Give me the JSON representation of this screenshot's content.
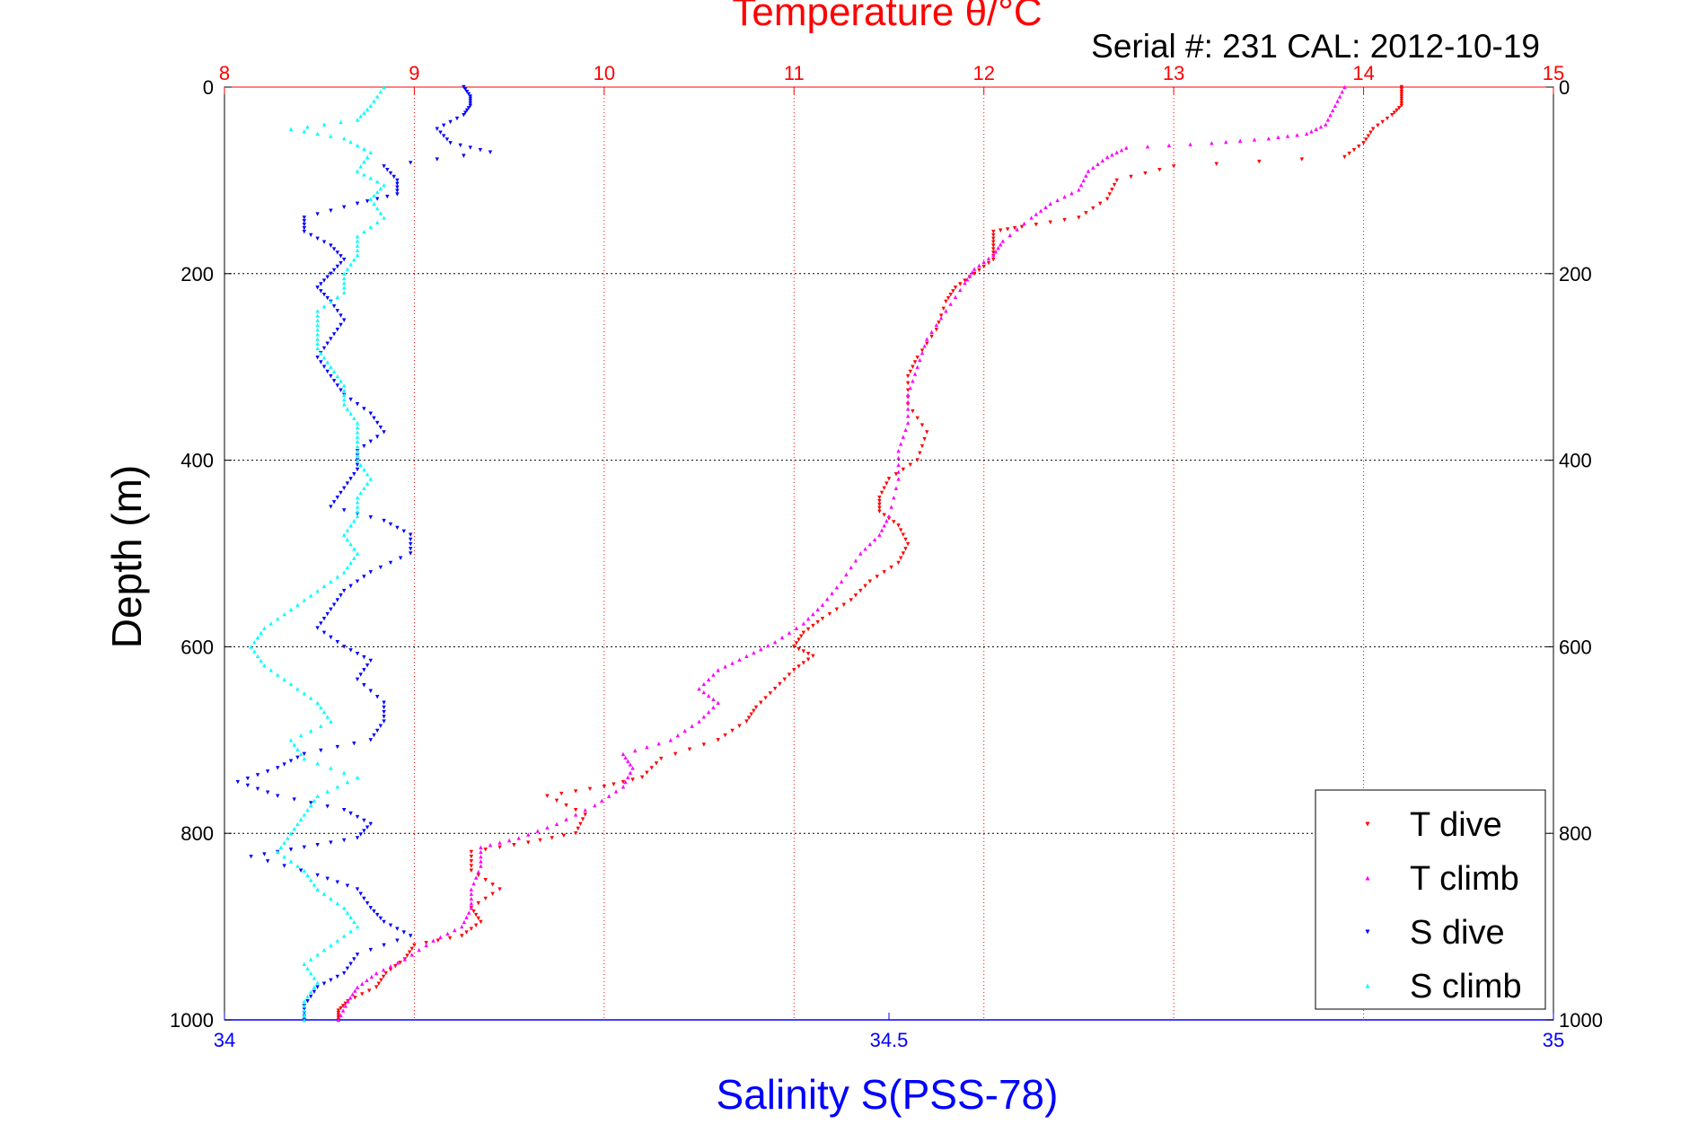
{
  "chart_data": {
    "type": "scatter",
    "title": "Temperature θ/°C",
    "subtitle": "Serial #: 231  CAL: 2012-10-19",
    "ylabel": "Depth (m)",
    "xlabel_bottom": "Salinity S(PSS-78)",
    "ylim": [
      0,
      1000
    ],
    "y_reversed": true,
    "y_ticks": [
      0,
      200,
      400,
      600,
      800,
      1000
    ],
    "x_top": {
      "label": "Temperature θ/°C",
      "lim": [
        8,
        15
      ],
      "ticks": [
        8,
        9,
        10,
        11,
        12,
        13,
        14,
        15
      ],
      "color": "#ff0000"
    },
    "x_bottom": {
      "label": "Salinity S(PSS-78)",
      "lim": [
        34,
        35
      ],
      "ticks": [
        34,
        34.5,
        35
      ],
      "color": "#0000ff"
    },
    "grid": true,
    "legend_position": "bottom-right",
    "series": [
      {
        "name": "T dive",
        "axis": "top",
        "color": "#ff0000",
        "marker": "triangle-down",
        "points": [
          [
            14.2,
            0
          ],
          [
            14.2,
            10
          ],
          [
            14.2,
            20
          ],
          [
            14.15,
            30
          ],
          [
            14.05,
            45
          ],
          [
            14.0,
            60
          ],
          [
            13.9,
            75
          ],
          [
            13.0,
            85
          ],
          [
            12.7,
            100
          ],
          [
            12.65,
            120
          ],
          [
            12.5,
            140
          ],
          [
            12.2,
            150
          ],
          [
            12.05,
            155
          ],
          [
            12.05,
            170
          ],
          [
            12.05,
            185
          ],
          [
            11.95,
            200
          ],
          [
            11.85,
            215
          ],
          [
            11.8,
            230
          ],
          [
            11.75,
            260
          ],
          [
            11.65,
            290
          ],
          [
            11.6,
            310
          ],
          [
            11.6,
            340
          ],
          [
            11.7,
            370
          ],
          [
            11.65,
            400
          ],
          [
            11.5,
            420
          ],
          [
            11.45,
            440
          ],
          [
            11.45,
            455
          ],
          [
            11.55,
            470
          ],
          [
            11.6,
            490
          ],
          [
            11.55,
            510
          ],
          [
            11.4,
            530
          ],
          [
            11.3,
            550
          ],
          [
            11.15,
            570
          ],
          [
            11.05,
            585
          ],
          [
            11.0,
            600
          ],
          [
            11.1,
            610
          ],
          [
            11.0,
            625
          ],
          [
            10.9,
            645
          ],
          [
            10.8,
            665
          ],
          [
            10.75,
            680
          ],
          [
            10.6,
            700
          ],
          [
            10.3,
            720
          ],
          [
            10.2,
            740
          ],
          [
            10.0,
            750
          ],
          [
            9.7,
            760
          ],
          [
            9.9,
            780
          ],
          [
            9.85,
            800
          ],
          [
            9.6,
            810
          ],
          [
            9.3,
            820
          ],
          [
            9.3,
            840
          ],
          [
            9.45,
            860
          ],
          [
            9.3,
            880
          ],
          [
            9.35,
            895
          ],
          [
            9.25,
            910
          ],
          [
            9.0,
            920
          ],
          [
            8.95,
            935
          ],
          [
            8.85,
            950
          ],
          [
            8.8,
            965
          ],
          [
            8.65,
            980
          ],
          [
            8.6,
            990
          ],
          [
            8.6,
            1000
          ]
        ]
      },
      {
        "name": "T climb",
        "axis": "top",
        "color": "#ff00ff",
        "marker": "triangle-up",
        "points": [
          [
            13.9,
            0
          ],
          [
            13.85,
            20
          ],
          [
            13.8,
            40
          ],
          [
            13.7,
            50
          ],
          [
            13.5,
            55
          ],
          [
            13.2,
            60
          ],
          [
            12.75,
            65
          ],
          [
            12.65,
            75
          ],
          [
            12.55,
            90
          ],
          [
            12.5,
            110
          ],
          [
            12.35,
            125
          ],
          [
            12.25,
            140
          ],
          [
            12.1,
            165
          ],
          [
            12.05,
            180
          ],
          [
            11.95,
            195
          ],
          [
            11.9,
            210
          ],
          [
            11.8,
            240
          ],
          [
            11.7,
            270
          ],
          [
            11.65,
            300
          ],
          [
            11.6,
            330
          ],
          [
            11.6,
            360
          ],
          [
            11.55,
            390
          ],
          [
            11.55,
            420
          ],
          [
            11.5,
            460
          ],
          [
            11.45,
            480
          ],
          [
            11.35,
            500
          ],
          [
            11.25,
            530
          ],
          [
            11.15,
            555
          ],
          [
            11.05,
            575
          ],
          [
            10.9,
            595
          ],
          [
            10.75,
            610
          ],
          [
            10.6,
            625
          ],
          [
            10.5,
            645
          ],
          [
            10.6,
            660
          ],
          [
            10.5,
            680
          ],
          [
            10.35,
            700
          ],
          [
            10.1,
            715
          ],
          [
            10.15,
            730
          ],
          [
            10.1,
            750
          ],
          [
            9.95,
            770
          ],
          [
            9.75,
            790
          ],
          [
            9.55,
            805
          ],
          [
            9.35,
            815
          ],
          [
            9.35,
            835
          ],
          [
            9.3,
            860
          ],
          [
            9.3,
            880
          ],
          [
            9.25,
            900
          ],
          [
            9.1,
            915
          ],
          [
            8.95,
            935
          ],
          [
            8.8,
            950
          ],
          [
            8.7,
            965
          ],
          [
            8.65,
            980
          ],
          [
            8.6,
            1000
          ]
        ]
      },
      {
        "name": "S dive",
        "axis": "bottom",
        "color": "#0000ff",
        "marker": "triangle-down",
        "points": [
          [
            34.18,
            0
          ],
          [
            34.185,
            10
          ],
          [
            34.185,
            20
          ],
          [
            34.18,
            30
          ],
          [
            34.16,
            45
          ],
          [
            34.17,
            60
          ],
          [
            34.2,
            70
          ],
          [
            34.12,
            85
          ],
          [
            34.13,
            100
          ],
          [
            34.13,
            115
          ],
          [
            34.1,
            125
          ],
          [
            34.06,
            140
          ],
          [
            34.06,
            155
          ],
          [
            34.08,
            170
          ],
          [
            34.09,
            185
          ],
          [
            34.08,
            200
          ],
          [
            34.07,
            215
          ],
          [
            34.08,
            230
          ],
          [
            34.09,
            250
          ],
          [
            34.08,
            270
          ],
          [
            34.07,
            290
          ],
          [
            34.08,
            310
          ],
          [
            34.09,
            330
          ],
          [
            34.11,
            350
          ],
          [
            34.12,
            370
          ],
          [
            34.1,
            390
          ],
          [
            34.1,
            410
          ],
          [
            34.09,
            430
          ],
          [
            34.08,
            450
          ],
          [
            34.12,
            465
          ],
          [
            34.14,
            480
          ],
          [
            34.14,
            500
          ],
          [
            34.11,
            520
          ],
          [
            34.09,
            540
          ],
          [
            34.08,
            560
          ],
          [
            34.07,
            580
          ],
          [
            34.09,
            600
          ],
          [
            34.11,
            615
          ],
          [
            34.1,
            635
          ],
          [
            34.12,
            660
          ],
          [
            34.12,
            680
          ],
          [
            34.11,
            700
          ],
          [
            34.06,
            715
          ],
          [
            34.04,
            730
          ],
          [
            34.01,
            745
          ],
          [
            34.04,
            760
          ],
          [
            34.09,
            775
          ],
          [
            34.11,
            790
          ],
          [
            34.1,
            805
          ],
          [
            34.06,
            815
          ],
          [
            34.02,
            825
          ],
          [
            34.07,
            845
          ],
          [
            34.1,
            860
          ],
          [
            34.11,
            880
          ],
          [
            34.12,
            895
          ],
          [
            34.14,
            910
          ],
          [
            34.1,
            930
          ],
          [
            34.09,
            950
          ],
          [
            34.07,
            965
          ],
          [
            34.06,
            985
          ],
          [
            34.06,
            1000
          ]
        ]
      },
      {
        "name": "S climb",
        "axis": "bottom",
        "color": "#00ffff",
        "marker": "triangle-up",
        "points": [
          [
            34.12,
            0
          ],
          [
            34.11,
            20
          ],
          [
            34.1,
            35
          ],
          [
            34.05,
            45
          ],
          [
            34.09,
            55
          ],
          [
            34.11,
            70
          ],
          [
            34.1,
            90
          ],
          [
            34.12,
            105
          ],
          [
            34.11,
            120
          ],
          [
            34.12,
            140
          ],
          [
            34.1,
            160
          ],
          [
            34.1,
            180
          ],
          [
            34.09,
            200
          ],
          [
            34.09,
            220
          ],
          [
            34.07,
            240
          ],
          [
            34.07,
            260
          ],
          [
            34.07,
            280
          ],
          [
            34.08,
            300
          ],
          [
            34.09,
            320
          ],
          [
            34.09,
            340
          ],
          [
            34.1,
            360
          ],
          [
            34.1,
            380
          ],
          [
            34.1,
            400
          ],
          [
            34.11,
            420
          ],
          [
            34.1,
            440
          ],
          [
            34.1,
            460
          ],
          [
            34.09,
            480
          ],
          [
            34.1,
            500
          ],
          [
            34.09,
            520
          ],
          [
            34.07,
            540
          ],
          [
            34.05,
            560
          ],
          [
            34.03,
            580
          ],
          [
            34.02,
            600
          ],
          [
            34.03,
            620
          ],
          [
            34.05,
            640
          ],
          [
            34.07,
            660
          ],
          [
            34.08,
            680
          ],
          [
            34.05,
            700
          ],
          [
            34.06,
            720
          ],
          [
            34.1,
            740
          ],
          [
            34.07,
            760
          ],
          [
            34.06,
            780
          ],
          [
            34.05,
            800
          ],
          [
            34.04,
            820
          ],
          [
            34.06,
            840
          ],
          [
            34.07,
            860
          ],
          [
            34.09,
            880
          ],
          [
            34.1,
            900
          ],
          [
            34.08,
            920
          ],
          [
            34.06,
            940
          ],
          [
            34.07,
            960
          ],
          [
            34.06,
            980
          ],
          [
            34.06,
            1000
          ]
        ]
      }
    ]
  }
}
